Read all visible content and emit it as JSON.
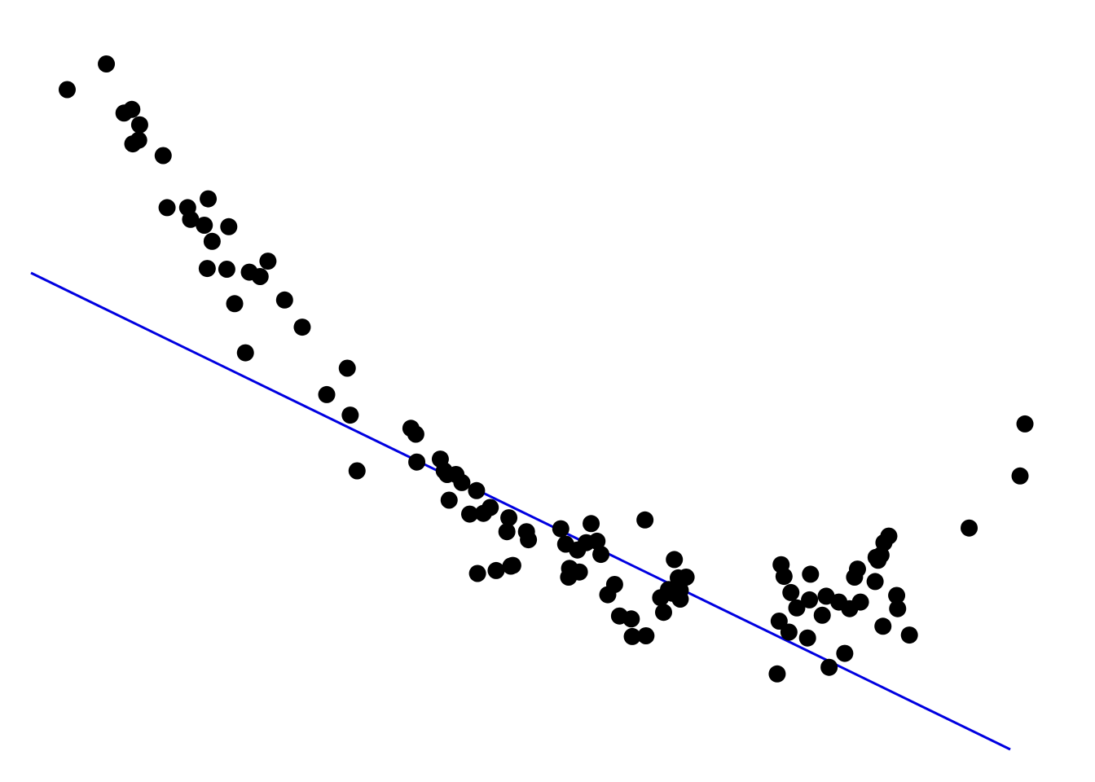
{
  "chart_data": {
    "type": "scatter",
    "title": "",
    "xlabel": "",
    "ylabel": "",
    "axes_visible": false,
    "grid": false,
    "xlim": [
      0,
      100
    ],
    "ylim": [
      0,
      100
    ],
    "colors": {
      "points": "#000000",
      "fit_line": "#0000e0",
      "background": "#ffffff"
    },
    "series": [
      {
        "kind": "points",
        "x": [
          3.7,
          7.7,
          9.5,
          10.3,
          11.1,
          10.4,
          11.0,
          13.5,
          13.9,
          16.0,
          16.3,
          18.1,
          17.7,
          18.5,
          20.2,
          20.0,
          18.0,
          22.3,
          24.2,
          23.4,
          20.8,
          25.9,
          27.7,
          21.9,
          30.2,
          32.6,
          33.3,
          32.3,
          38.8,
          39.3,
          41.8,
          39.4,
          42.5,
          42.2,
          43.4,
          44.0,
          45.5,
          42.7,
          44.8,
          46.9,
          48.8,
          48.6,
          50.6,
          50.8,
          46.2,
          49.2,
          47.5,
          45.6,
          49.0,
          54.1,
          55.8,
          56.7,
          57.8,
          58.2,
          57.2,
          59.6,
          61.3,
          60.1,
          54.6,
          55.0,
          56.0,
          54.9,
          58.9,
          62.8,
          61.4,
          62.7,
          66.9,
          65.7,
          66.1,
          65.5,
          66.3,
          64.3,
          64.6,
          65.1,
          66.3,
          76.6,
          76.9,
          77.6,
          79.6,
          78.2,
          77.4,
          79.3,
          81.2,
          83.1,
          83.6,
          84.7,
          86.2,
          87.1,
          86.8,
          86.3,
          84.4,
          86.5,
          84.1,
          82.5,
          80.8,
          76.4,
          76.2,
          81.5,
          79.5,
          87.6,
          88.4,
          87.0,
          89.7,
          95.8,
          101.0,
          101.5,
          88.5
        ],
        "y": [
          90.0,
          93.5,
          86.8,
          87.3,
          85.2,
          82.6,
          83.1,
          81.0,
          73.9,
          73.9,
          72.3,
          75.1,
          71.5,
          69.3,
          71.3,
          65.5,
          65.6,
          65.1,
          66.6,
          64.5,
          60.8,
          61.3,
          57.6,
          54.1,
          48.4,
          45.6,
          38.0,
          52.0,
          43.8,
          43.0,
          39.6,
          39.2,
          37.5,
          38.0,
          37.5,
          36.4,
          35.3,
          34.0,
          32.1,
          33.0,
          31.6,
          29.7,
          29.7,
          28.6,
          32.2,
          25.1,
          24.4,
          24.0,
          25.0,
          30.1,
          27.2,
          28.2,
          28.4,
          26.6,
          30.8,
          22.5,
          17.8,
          18.2,
          28.0,
          24.7,
          24.2,
          23.5,
          21.1,
          15.5,
          15.4,
          31.3,
          23.5,
          25.9,
          23.4,
          21.3,
          21.7,
          20.7,
          18.7,
          21.8,
          20.5,
          25.2,
          23.6,
          21.4,
          23.9,
          19.3,
          16.0,
          15.2,
          20.9,
          13.1,
          19.2,
          20.1,
          22.9,
          28.2,
          26.5,
          26.2,
          24.6,
          25.8,
          23.5,
          20.1,
          18.3,
          17.5,
          10.3,
          11.2,
          20.4,
          29.1,
          21.0,
          16.8,
          15.6,
          30.2,
          37.3,
          44.4,
          19.2
        ]
      },
      {
        "kind": "fit-line",
        "x": [
          0,
          100
        ],
        "y": [
          65.0,
          0.0
        ]
      }
    ]
  }
}
